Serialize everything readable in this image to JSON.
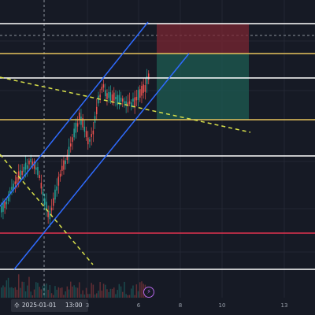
{
  "chart_data": {
    "type": "candlestick",
    "x_tick_labels": [
      {
        "label": "3",
        "x": 3
      },
      {
        "label": "6",
        "x": 6
      },
      {
        "label": "8",
        "x": 8
      },
      {
        "label": "10",
        "x": 10
      },
      {
        "label": "13",
        "x": 13
      }
    ],
    "crosshair": {
      "weekday": "수",
      "date": "2025-01-01",
      "time": "13:00"
    },
    "horizontal_levels": [
      {
        "color": "#ffffff"
      },
      {
        "color": "#e5c35c"
      },
      {
        "color": "#ffffff"
      },
      {
        "color": "#e5c35c"
      },
      {
        "color": "#ffffff"
      },
      {
        "color": "#e0324f"
      },
      {
        "color": "#ffffff"
      }
    ],
    "position_tool": {
      "type": "short",
      "stop_color": "#7a2632",
      "target_color": "#1e5c52"
    },
    "channel": {
      "color": "#2f6bff"
    },
    "trendlines_color": "#d9e14a",
    "event_icon": "lightning-icon",
    "colors": {
      "up": "#26a69a",
      "down": "#ef5350",
      "background": "#161a25",
      "grid": "#232733"
    }
  }
}
